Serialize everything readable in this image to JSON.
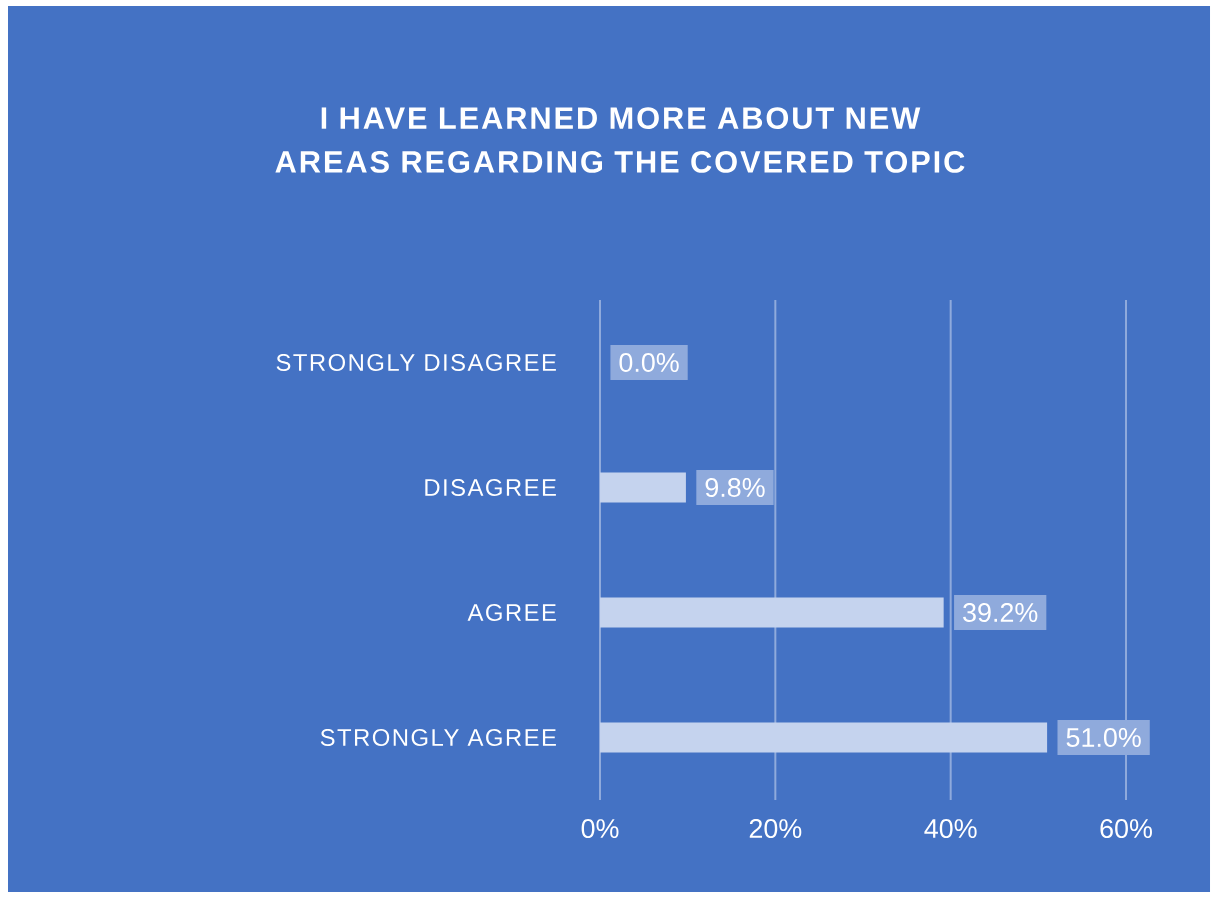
{
  "chart_data": {
    "type": "bar",
    "orientation": "horizontal",
    "title": "I HAVE LEARNED MORE ABOUT NEW AREAS REGARDING THE COVERED TOPIC",
    "categories": [
      "STRONGLY DISAGREE",
      "DISAGREE",
      "AGREE",
      "STRONGLY AGREE"
    ],
    "values": [
      0.0,
      9.8,
      39.2,
      51.0
    ],
    "value_labels": [
      "0.0%",
      "9.8%",
      "39.2%",
      "51.0%"
    ],
    "color": "#c5d3ee",
    "xlim": [
      0,
      60
    ],
    "xticks": [
      {
        "value": 0,
        "label": "0%"
      },
      {
        "value": 20,
        "label": "20%"
      },
      {
        "value": 40,
        "label": "40%"
      },
      {
        "value": 60,
        "label": "60%"
      }
    ],
    "grid": "x"
  }
}
